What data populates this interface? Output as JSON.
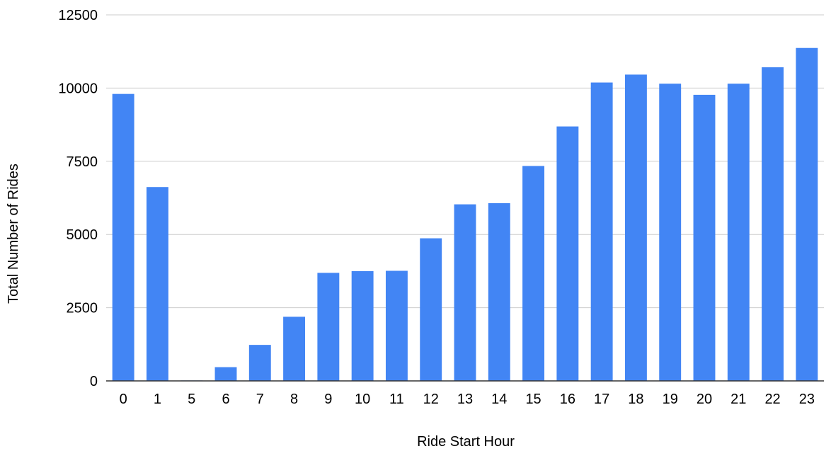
{
  "chart_data": {
    "type": "bar",
    "title": "",
    "xlabel": "Ride Start Hour",
    "ylabel": "Total Number of Rides",
    "categories": [
      "0",
      "1",
      "5",
      "6",
      "7",
      "8",
      "9",
      "10",
      "11",
      "12",
      "13",
      "14",
      "15",
      "16",
      "17",
      "18",
      "19",
      "20",
      "21",
      "22",
      "23"
    ],
    "values": [
      9800,
      6620,
      15,
      470,
      1230,
      2190,
      3690,
      3750,
      3760,
      4870,
      6030,
      6070,
      7340,
      8690,
      10190,
      10460,
      10150,
      9770,
      10150,
      10710,
      11370
    ],
    "ylim": [
      0,
      12500
    ],
    "yticks": [
      0,
      2500,
      5000,
      7500,
      10000,
      12500
    ],
    "grid": true,
    "legend": "none",
    "bar_color": "#4285f4"
  }
}
